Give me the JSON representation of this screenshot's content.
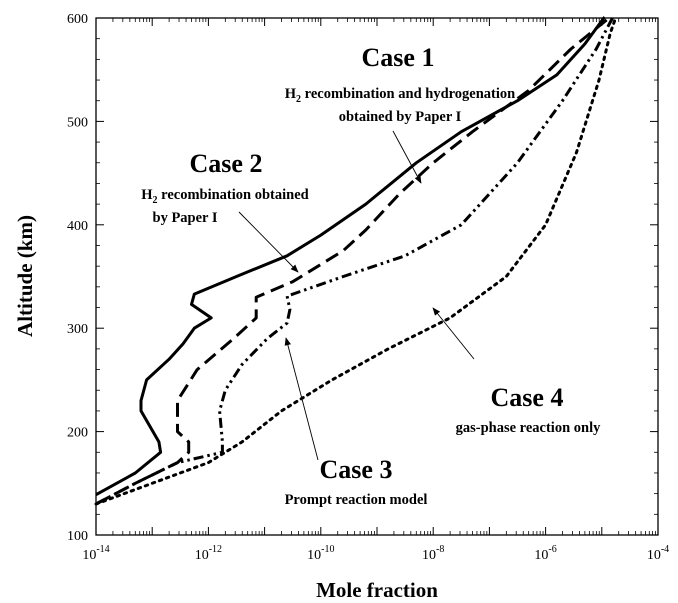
{
  "chart_data": {
    "type": "line",
    "title": "",
    "xlabel": "Mole fraction",
    "ylabel": "Altitude (km)",
    "xscale": "log",
    "xlim": [
      1e-14,
      0.0001
    ],
    "ylim": [
      100,
      600
    ],
    "x_ticks": [
      {
        "base": "10",
        "exp": "-14"
      },
      {
        "base": "10",
        "exp": "-12"
      },
      {
        "base": "10",
        "exp": "-10"
      },
      {
        "base": "10",
        "exp": "-8"
      },
      {
        "base": "10",
        "exp": "-6"
      },
      {
        "base": "10",
        "exp": "-4"
      }
    ],
    "y_ticks": [
      "100",
      "200",
      "300",
      "400",
      "500",
      "600"
    ],
    "legend": "none",
    "grid": false,
    "series": [
      {
        "key": "case1",
        "style": "solid",
        "points": [
          [
            -14.0,
            139
          ],
          [
            -13.3,
            160
          ],
          [
            -12.85,
            180
          ],
          [
            -12.88,
            190
          ],
          [
            -13.2,
            220
          ],
          [
            -13.2,
            230
          ],
          [
            -13.1,
            250
          ],
          [
            -12.7,
            270
          ],
          [
            -12.45,
            285
          ],
          [
            -12.25,
            300
          ],
          [
            -11.95,
            310
          ],
          [
            -12.3,
            323
          ],
          [
            -12.25,
            333
          ],
          [
            -11.5,
            350
          ],
          [
            -10.6,
            370
          ],
          [
            -10.0,
            390
          ],
          [
            -9.2,
            420
          ],
          [
            -8.3,
            460
          ],
          [
            -7.5,
            490
          ],
          [
            -6.5,
            520
          ],
          [
            -5.8,
            545
          ],
          [
            -5.3,
            575
          ],
          [
            -4.95,
            601
          ]
        ]
      },
      {
        "key": "case2",
        "style": "dashed",
        "points": [
          [
            -14.0,
            130
          ],
          [
            -13.3,
            150
          ],
          [
            -12.55,
            170
          ],
          [
            -12.35,
            180
          ],
          [
            -12.35,
            190
          ],
          [
            -12.55,
            200
          ],
          [
            -12.55,
            230
          ],
          [
            -12.2,
            260
          ],
          [
            -11.55,
            290
          ],
          [
            -11.15,
            310
          ],
          [
            -11.15,
            320
          ],
          [
            -11.15,
            330
          ],
          [
            -10.5,
            345
          ],
          [
            -10.05,
            360
          ],
          [
            -9.6,
            375
          ],
          [
            -9.2,
            395
          ],
          [
            -8.6,
            430
          ],
          [
            -8.0,
            460
          ],
          [
            -7.3,
            490
          ],
          [
            -6.3,
            530
          ],
          [
            -5.55,
            570
          ],
          [
            -4.85,
            601
          ]
        ]
      },
      {
        "key": "case3",
        "style": "dash-dot",
        "points": [
          [
            -14.0,
            130
          ],
          [
            -13.3,
            150
          ],
          [
            -12.55,
            170
          ],
          [
            -11.75,
            180
          ],
          [
            -11.75,
            190
          ],
          [
            -11.8,
            220
          ],
          [
            -11.7,
            240
          ],
          [
            -11.4,
            265
          ],
          [
            -10.95,
            290
          ],
          [
            -10.6,
            305
          ],
          [
            -10.55,
            318
          ],
          [
            -10.6,
            331
          ],
          [
            -9.6,
            350
          ],
          [
            -8.5,
            370
          ],
          [
            -7.5,
            400
          ],
          [
            -6.5,
            460
          ],
          [
            -5.7,
            520
          ],
          [
            -5.1,
            570
          ],
          [
            -4.8,
            601
          ]
        ]
      },
      {
        "key": "case4",
        "style": "dotted",
        "points": [
          [
            -14.0,
            130
          ],
          [
            -13.0,
            150
          ],
          [
            -12.0,
            170
          ],
          [
            -11.4,
            190
          ],
          [
            -10.7,
            220
          ],
          [
            -9.8,
            250
          ],
          [
            -8.8,
            280
          ],
          [
            -7.7,
            310
          ],
          [
            -6.7,
            350
          ],
          [
            -6.0,
            400
          ],
          [
            -5.45,
            470
          ],
          [
            -5.05,
            540
          ],
          [
            -4.85,
            585
          ],
          [
            -4.75,
            601
          ]
        ]
      }
    ],
    "annotations": [
      {
        "key": "case1",
        "title": "Case 1",
        "lines": [
          [
            "H",
            "2",
            " recombination and hydrogenation"
          ],
          [
            "obtained by Paper I"
          ]
        ]
      },
      {
        "key": "case2",
        "title": "Case 2",
        "lines": [
          [
            "H",
            "2",
            " recombination obtained"
          ],
          [
            "by Paper I"
          ]
        ]
      },
      {
        "key": "case3",
        "title": "Case 3",
        "lines": [
          [
            "Prompt reaction model"
          ]
        ]
      },
      {
        "key": "case4",
        "title": "Case 4",
        "lines": [
          [
            "gas-phase reaction only"
          ]
        ]
      }
    ]
  }
}
